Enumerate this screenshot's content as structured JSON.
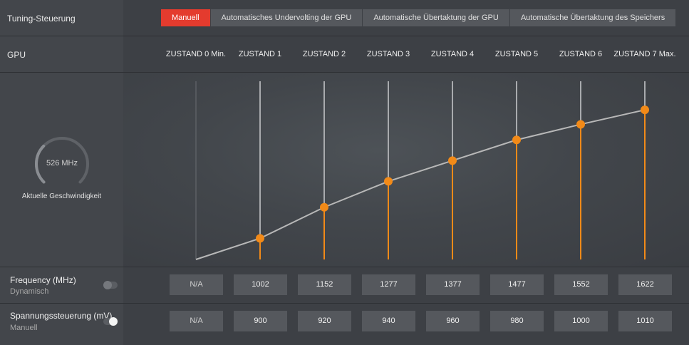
{
  "tuning": {
    "label": "Tuning-Steuerung",
    "tabs": [
      {
        "label": "Manuell",
        "active": true
      },
      {
        "label": "Automatisches Undervolting der GPU",
        "active": false
      },
      {
        "label": "Automatische Übertaktung der GPU",
        "active": false
      },
      {
        "label": "Automatische Übertaktung des Speichers",
        "active": false
      }
    ]
  },
  "gpu": {
    "label": "GPU",
    "states": [
      "ZUSTAND 0 Min.",
      "ZUSTAND 1",
      "ZUSTAND 2",
      "ZUSTAND 3",
      "ZUSTAND 4",
      "ZUSTAND 5",
      "ZUSTAND 6",
      "ZUSTAND 7 Max."
    ]
  },
  "gauge": {
    "value": "526 MHz",
    "caption": "Aktuelle Geschwindigkeit",
    "fraction": 0.33
  },
  "frequency": {
    "title": "Frequency (MHz)",
    "mode": "Dynamisch",
    "toggle_on": false,
    "values": [
      "N/A",
      "1002",
      "1152",
      "1277",
      "1377",
      "1477",
      "1552",
      "1622"
    ]
  },
  "voltage": {
    "title": "Spannungssteuerung (mV)",
    "mode": "Manuell",
    "toggle_on": true,
    "values": [
      "N/A",
      "900",
      "920",
      "940",
      "960",
      "980",
      "1000",
      "1010"
    ]
  },
  "colors": {
    "accent": "#e43b2e",
    "handle": "#f28a18",
    "curve": "#b8b8b8"
  }
}
